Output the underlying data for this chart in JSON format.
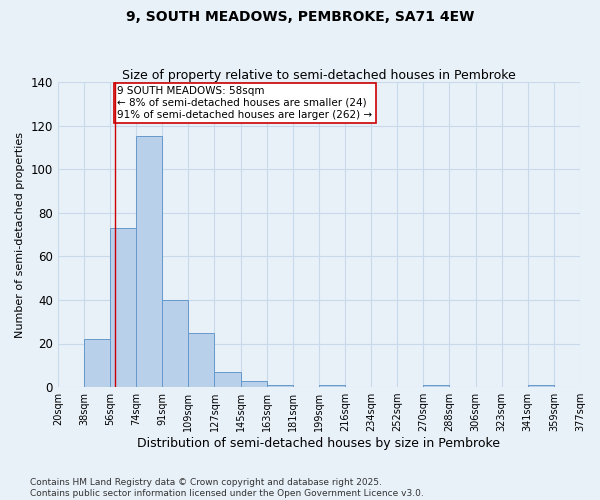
{
  "title": "9, SOUTH MEADOWS, PEMBROKE, SA71 4EW",
  "subtitle": "Size of property relative to semi-detached houses in Pembroke",
  "xlabel": "Distribution of semi-detached houses by size in Pembroke",
  "ylabel": "Number of semi-detached properties",
  "footer_line1": "Contains HM Land Registry data © Crown copyright and database right 2025.",
  "footer_line2": "Contains public sector information licensed under the Open Government Licence v3.0.",
  "bin_labels": [
    "20sqm",
    "38sqm",
    "56sqm",
    "74sqm",
    "91sqm",
    "109sqm",
    "127sqm",
    "145sqm",
    "163sqm",
    "181sqm",
    "199sqm",
    "216sqm",
    "234sqm",
    "252sqm",
    "270sqm",
    "288sqm",
    "306sqm",
    "323sqm",
    "341sqm",
    "359sqm",
    "377sqm"
  ],
  "bar_values": [
    0,
    22,
    73,
    115,
    40,
    25,
    7,
    3,
    1,
    0,
    1,
    0,
    0,
    0,
    1,
    0,
    0,
    0,
    1,
    0
  ],
  "bar_color": "#b8d0ea",
  "bar_edge_color": "#6699cc",
  "bar_edge_width": 0.7,
  "vline_index": 2.18,
  "vline_color": "#cc0000",
  "ylim": [
    0,
    140
  ],
  "yticks": [
    0,
    20,
    40,
    60,
    80,
    100,
    120,
    140
  ],
  "annotation_text": "9 SOUTH MEADOWS: 58sqm\n← 8% of semi-detached houses are smaller (24)\n91% of semi-detached houses are larger (262) →",
  "annotation_box_color": "white",
  "annotation_box_edge_color": "#cc0000",
  "grid_color": "#c8daea",
  "bg_color": "#e8f0f8",
  "title_fontsize": 10,
  "subtitle_fontsize": 9,
  "ylabel_fontsize": 8,
  "xlabel_fontsize": 9,
  "tick_fontsize": 7,
  "annotation_fontsize": 7.5,
  "footer_fontsize": 6.5
}
